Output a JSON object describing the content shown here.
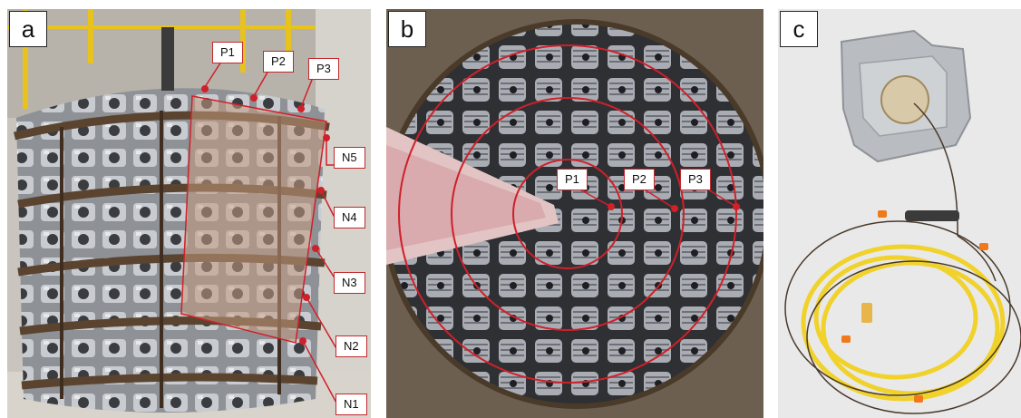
{
  "panels": [
    {
      "letter": "a",
      "labels": [
        "P1",
        "P2",
        "P3",
        "N5",
        "N4",
        "N3",
        "N2",
        "N1"
      ]
    },
    {
      "letter": "b",
      "labels": [
        "P1",
        "P2",
        "P3"
      ]
    },
    {
      "letter": "c"
    }
  ],
  "colors": {
    "annotation_red": "#d0202a",
    "shade_overlay": "#c49a80",
    "cable_yellow": "#f0d22a",
    "cable_brown": "#4a3a2a",
    "clip_orange": "#f07a1a",
    "metal": "#b9bcc0"
  }
}
